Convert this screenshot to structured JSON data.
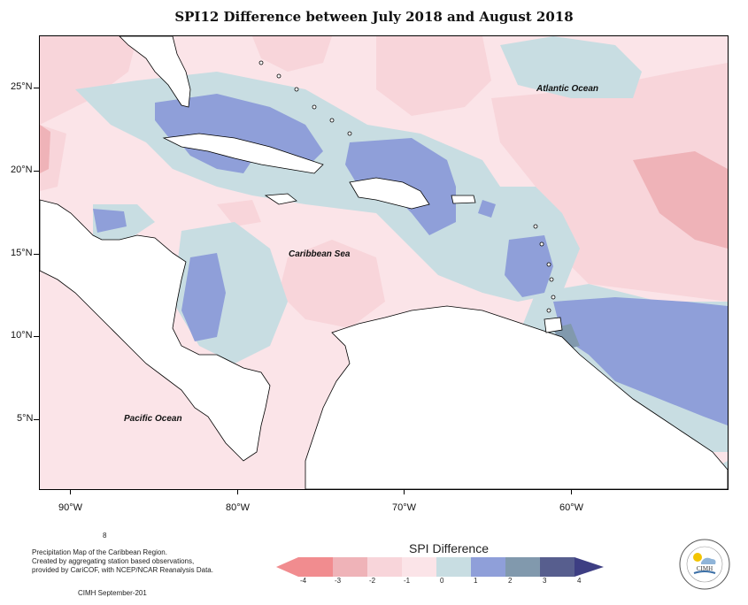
{
  "title": "SPI12 Difference between July 2018 and August 2018",
  "map": {
    "lat_labels": [
      "25°N",
      "20°N",
      "15°N",
      "10°N",
      "5°N"
    ],
    "lon_labels": [
      "90°W",
      "80°W",
      "70°W",
      "60°W"
    ],
    "ocean_labels": {
      "atlantic": "Atlantic Ocean",
      "caribbean": "Caribbean Sea",
      "pacific": "Pacific Ocean"
    }
  },
  "legend": {
    "title": "SPI Difference",
    "ticks": [
      "-4",
      "-3",
      "-2",
      "-1",
      "0",
      "1",
      "2",
      "3",
      "4"
    ],
    "colors": [
      "#f18c8f",
      "#efb3b8",
      "#f8d5da",
      "#fbe4e8",
      "#c8dde2",
      "#8f9fd9",
      "#8199ad",
      "#575e8e"
    ]
  },
  "footer": {
    "number": "8",
    "line1": "Precipitation Map of the Caribbean Region.",
    "line2": "Created by aggregating station based observations,",
    "line3": "provided by CariCOF, with NCEP/NCAR Reanalysis Data.",
    "credit": "CIMH September-201"
  },
  "logo": {
    "text": "CIMH"
  }
}
